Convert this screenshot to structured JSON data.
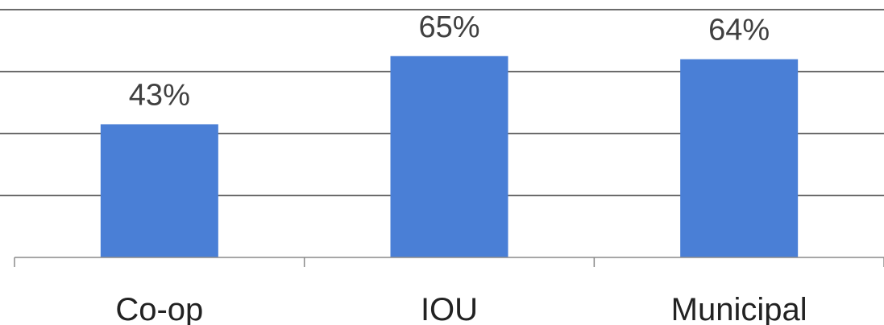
{
  "chart_data": {
    "type": "bar",
    "categories": [
      "Co-op",
      "IOU",
      "Municipal"
    ],
    "values": [
      43,
      65,
      64
    ],
    "data_labels": [
      "43%",
      "65%",
      "64%"
    ],
    "ylim": [
      0,
      80
    ],
    "gridlines": true,
    "bar_color": "#4a7fd6",
    "legend": "none"
  }
}
